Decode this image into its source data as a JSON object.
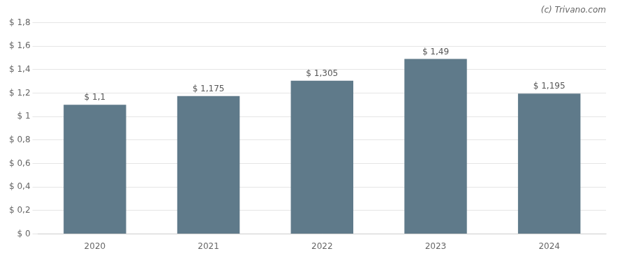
{
  "chart_data": {
    "type": "bar",
    "categories": [
      "2020",
      "2021",
      "2022",
      "2023",
      "2024"
    ],
    "values": [
      1.1,
      1.175,
      1.305,
      1.49,
      1.195
    ],
    "value_labels": [
      "$ 1,1",
      "$ 1,175",
      "$ 1,305",
      "$ 1,49",
      "$ 1,195"
    ],
    "data_labels": true,
    "color": "#5f7a8a",
    "ylim": [
      0,
      1.8
    ],
    "yticks": [
      {
        "value": 0,
        "label": "$ 0"
      },
      {
        "value": 0.2,
        "label": "$ 0,2"
      },
      {
        "value": 0.4,
        "label": "$ 0,4"
      },
      {
        "value": 0.6,
        "label": "$ 0,6"
      },
      {
        "value": 0.8,
        "label": "$ 0,8"
      },
      {
        "value": 1.0,
        "label": "$ 1"
      },
      {
        "value": 1.2,
        "label": "$ 1,2"
      },
      {
        "value": 1.4,
        "label": "$ 1,4"
      },
      {
        "value": 1.6,
        "label": "$ 1,6"
      },
      {
        "value": 1.8,
        "label": "$ 1,8"
      }
    ],
    "grid": true,
    "annotations": [
      "(c) Trivano.com"
    ]
  }
}
